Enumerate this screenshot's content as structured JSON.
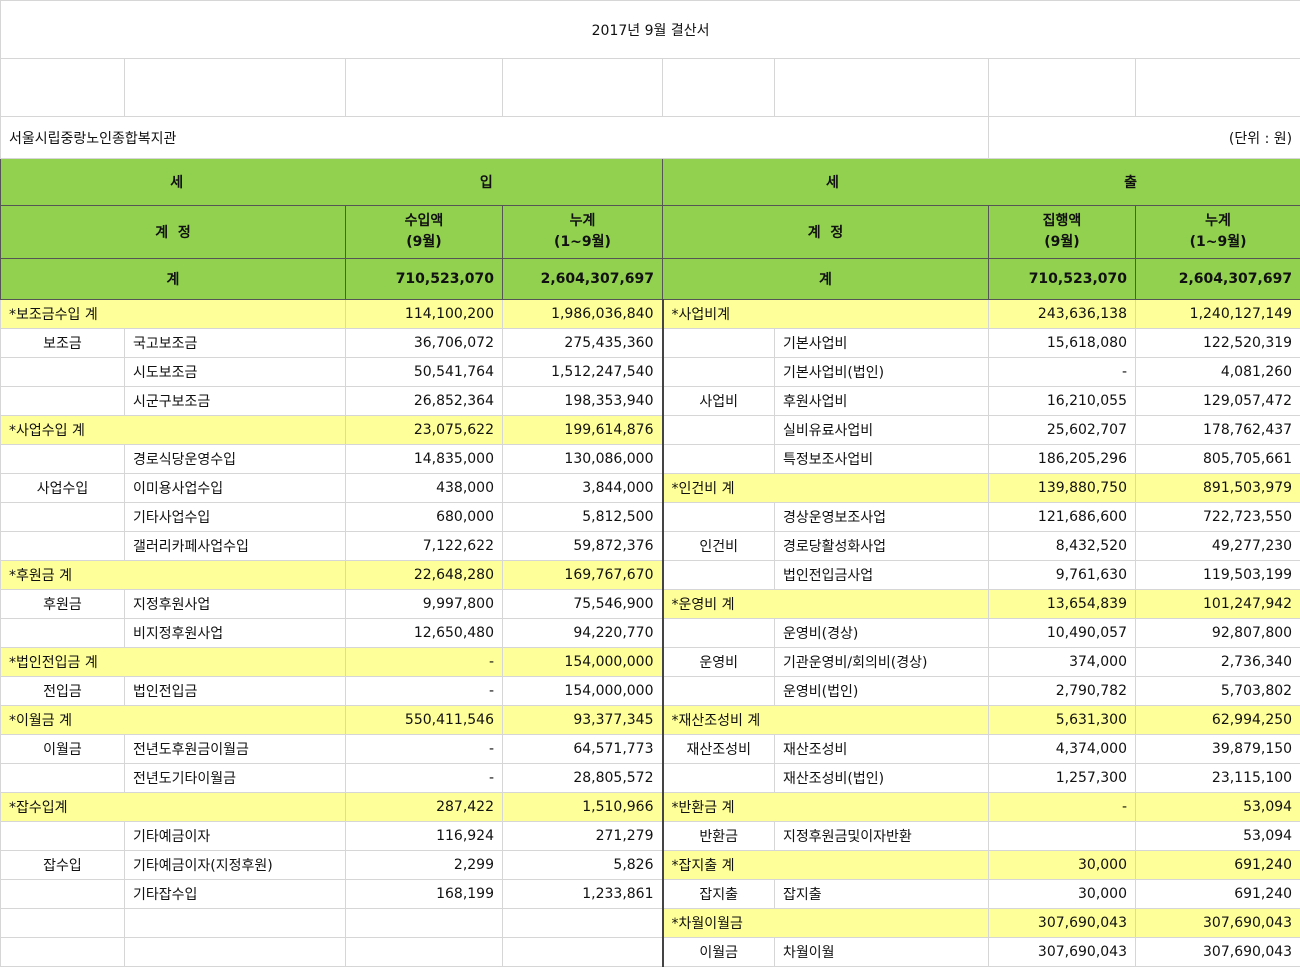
{
  "title": "2017년 9월 결산서",
  "org": "서울시립중랑노인종합복지관",
  "unit": "(단위 : 원)",
  "income": {
    "header_left": "세",
    "header_right": "입",
    "col_account": "계  정",
    "col_month_l1": "수입액",
    "col_month_l2": "(9월)",
    "col_cum_l1": "누계",
    "col_cum_l2": "(1~9월)",
    "total_label": "계",
    "total_month": "710,523,070",
    "total_cum": "2,604,307,697"
  },
  "expense": {
    "header_left": "세",
    "header_right": "출",
    "col_account": "계  정",
    "col_month_l1": "집행액",
    "col_month_l2": "(9월)",
    "col_cum_l1": "누계",
    "col_cum_l2": "(1~9월)",
    "total_label": "계",
    "total_month": "710,523,070",
    "total_cum": "2,604,307,697"
  },
  "rows": [
    {
      "l": {
        "kind": "sub",
        "label": "*보조금수입 계",
        "m": "114,100,200",
        "c": "1,986,036,840"
      },
      "r": {
        "kind": "sub",
        "label": "*사업비계",
        "m": "243,636,138",
        "c": "1,240,127,149"
      }
    },
    {
      "l": {
        "kind": "item",
        "cat": "보조금",
        "item": "국고보조금",
        "m": "36,706,072",
        "c": "275,435,360"
      },
      "r": {
        "kind": "item",
        "cat": "",
        "item": "기본사업비",
        "m": "15,618,080",
        "c": "122,520,319"
      }
    },
    {
      "l": {
        "kind": "item",
        "cat": "",
        "item": "시도보조금",
        "m": "50,541,764",
        "c": "1,512,247,540"
      },
      "r": {
        "kind": "item",
        "cat": "",
        "item": "기본사업비(법인)",
        "m": "-",
        "c": "4,081,260"
      }
    },
    {
      "l": {
        "kind": "item",
        "cat": "",
        "item": "시군구보조금",
        "m": "26,852,364",
        "c": "198,353,940"
      },
      "r": {
        "kind": "item",
        "cat": "사업비",
        "item": "후원사업비",
        "m": "16,210,055",
        "c": "129,057,472"
      }
    },
    {
      "l": {
        "kind": "sub",
        "label": "*사업수입 계",
        "m": "23,075,622",
        "c": "199,614,876"
      },
      "r": {
        "kind": "item",
        "cat": "",
        "item": "실비유료사업비",
        "m": "25,602,707",
        "c": "178,762,437"
      }
    },
    {
      "l": {
        "kind": "item",
        "cat": "",
        "item": "경로식당운영수입",
        "m": "14,835,000",
        "c": "130,086,000"
      },
      "r": {
        "kind": "item",
        "cat": "",
        "item": "특정보조사업비",
        "m": "186,205,296",
        "c": "805,705,661"
      }
    },
    {
      "l": {
        "kind": "item",
        "cat": "사업수입",
        "item": "이미용사업수입",
        "m": "438,000",
        "c": "3,844,000"
      },
      "r": {
        "kind": "sub",
        "label": "*인건비 계",
        "m": "139,880,750",
        "c": "891,503,979"
      }
    },
    {
      "l": {
        "kind": "item",
        "cat": "",
        "item": "기타사업수입",
        "m": "680,000",
        "c": "5,812,500"
      },
      "r": {
        "kind": "item",
        "cat": "",
        "item": "경상운영보조사업",
        "m": "121,686,600",
        "c": "722,723,550"
      }
    },
    {
      "l": {
        "kind": "item",
        "cat": "",
        "item": "갤러리카페사업수입",
        "m": "7,122,622",
        "c": "59,872,376"
      },
      "r": {
        "kind": "item",
        "cat": "인건비",
        "item": "경로당활성화사업",
        "m": "8,432,520",
        "c": "49,277,230"
      }
    },
    {
      "l": {
        "kind": "sub",
        "label": "*후원금 계",
        "m": "22,648,280",
        "c": "169,767,670"
      },
      "r": {
        "kind": "item",
        "cat": "",
        "item": "법인전입금사업",
        "m": "9,761,630",
        "c": "119,503,199"
      }
    },
    {
      "l": {
        "kind": "item",
        "cat": "후원금",
        "item": "지정후원사업",
        "m": "9,997,800",
        "c": "75,546,900"
      },
      "r": {
        "kind": "sub",
        "label": "*운영비 계",
        "m": "13,654,839",
        "c": "101,247,942"
      }
    },
    {
      "l": {
        "kind": "item",
        "cat": "",
        "item": "비지정후원사업",
        "m": "12,650,480",
        "c": "94,220,770"
      },
      "r": {
        "kind": "item",
        "cat": "",
        "item": "운영비(경상)",
        "m": "10,490,057",
        "c": "92,807,800"
      }
    },
    {
      "l": {
        "kind": "sub",
        "label": "*법인전입금 계",
        "m": "-",
        "c": "154,000,000"
      },
      "r": {
        "kind": "item",
        "cat": "운영비",
        "item": "기관운영비/회의비(경상)",
        "m": "374,000",
        "c": "2,736,340"
      }
    },
    {
      "l": {
        "kind": "item",
        "cat": "전입금",
        "item": "법인전입금",
        "m": "-",
        "c": "154,000,000"
      },
      "r": {
        "kind": "item",
        "cat": "",
        "item": "운영비(법인)",
        "m": "2,790,782",
        "c": "5,703,802"
      }
    },
    {
      "l": {
        "kind": "sub",
        "label": "*이월금 계",
        "m": "550,411,546",
        "c": "93,377,345"
      },
      "r": {
        "kind": "sub",
        "label": "*재산조성비 계",
        "m": "5,631,300",
        "c": "62,994,250"
      }
    },
    {
      "l": {
        "kind": "item",
        "cat": "이월금",
        "item": "전년도후원금이월금",
        "m": "-",
        "c": "64,571,773"
      },
      "r": {
        "kind": "item",
        "cat": "재산조성비",
        "item": "재산조성비",
        "m": "4,374,000",
        "c": "39,879,150"
      }
    },
    {
      "l": {
        "kind": "item",
        "cat": "",
        "item": "전년도기타이월금",
        "m": "-",
        "c": "28,805,572"
      },
      "r": {
        "kind": "item",
        "cat": "",
        "item": "재산조성비(법인)",
        "m": "1,257,300",
        "c": "23,115,100"
      }
    },
    {
      "l": {
        "kind": "sub",
        "label": "*잡수입계",
        "m": "287,422",
        "c": "1,510,966"
      },
      "r": {
        "kind": "sub",
        "label": "*반환금 계",
        "m": "-",
        "c": "53,094"
      }
    },
    {
      "l": {
        "kind": "item",
        "cat": "",
        "item": "기타예금이자",
        "m": "116,924",
        "c": "271,279"
      },
      "r": {
        "kind": "item",
        "cat": "반환금",
        "item": "지정후원금및이자반환",
        "m": "",
        "c": "53,094"
      }
    },
    {
      "l": {
        "kind": "item",
        "cat": "잡수입",
        "item": "기타예금이자(지정후원)",
        "m": "2,299",
        "c": "5,826"
      },
      "r": {
        "kind": "sub",
        "label": "*잡지출 계",
        "m": "30,000",
        "c": "691,240"
      }
    },
    {
      "l": {
        "kind": "item",
        "cat": "",
        "item": "기타잡수입",
        "m": "168,199",
        "c": "1,233,861"
      },
      "r": {
        "kind": "item",
        "cat": "잡지출",
        "item": "잡지출",
        "m": "30,000",
        "c": "691,240"
      }
    },
    {
      "l": {
        "kind": "empty"
      },
      "r": {
        "kind": "sub",
        "label": "*차월이월금",
        "m": "307,690,043",
        "c": "307,690,043"
      }
    },
    {
      "l": {
        "kind": "empty"
      },
      "r": {
        "kind": "item",
        "cat": "이월금",
        "item": "차월이월",
        "m": "307,690,043",
        "c": "307,690,043"
      }
    }
  ]
}
